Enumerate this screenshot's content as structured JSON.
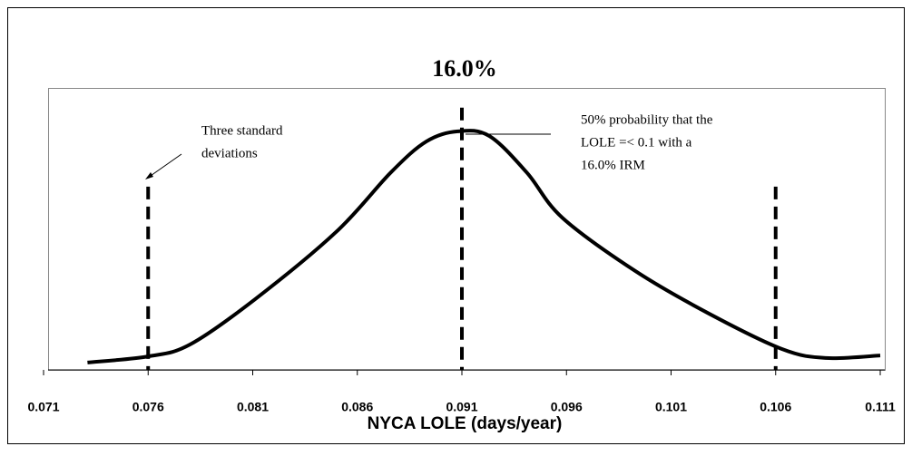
{
  "chart_data": {
    "type": "line",
    "title": "16.0%",
    "x_label": "NYCA LOLE (days/year)",
    "x": [
      0.0731,
      0.076,
      0.078,
      0.0811,
      0.085,
      0.0876,
      0.0893,
      0.0908,
      0.0923,
      0.0941,
      0.0958,
      0.0993,
      0.1028,
      0.1063,
      0.1084,
      0.111
    ],
    "series": [
      {
        "color": "#000000",
        "values": [
          2.6,
          4.8,
          9,
          25,
          49,
          70,
          81,
          84.6,
          83,
          70,
          54,
          35,
          20,
          7.4,
          4.2,
          5.1
        ]
      }
    ],
    "xlim": [
      0.071,
      0.111
    ],
    "xticks": [
      0.071,
      0.076,
      0.081,
      0.086,
      0.091,
      0.096,
      0.101,
      0.106,
      0.111
    ],
    "ylim": [
      0,
      100
    ],
    "reference_lines": [
      {
        "x": 0.076,
        "y": 65
      },
      {
        "x": 0.091,
        "y": 93
      },
      {
        "x": 0.106,
        "y": 65
      }
    ],
    "annotations": [
      {
        "lines": [
          "Three standard",
          "deviations"
        ]
      },
      {
        "lines": [
          "50% probability that the",
          "LOLE =< 0.1 with a",
          "16.0% IRM"
        ]
      }
    ]
  }
}
